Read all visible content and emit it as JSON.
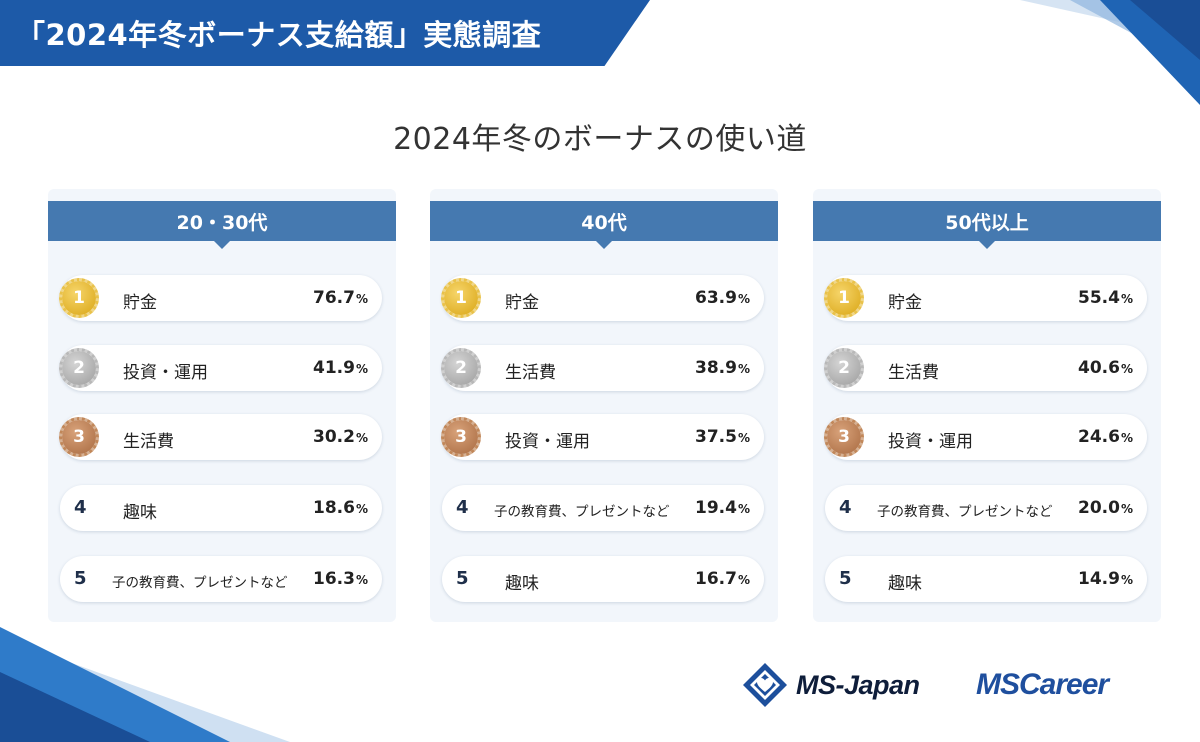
{
  "header": {
    "title": "「2024年冬ボーナス支給額」実態調査",
    "subtitle": "2024年冬のボーナスの使い道"
  },
  "colors": {
    "banner": "#1d5aa8",
    "panel_header": "#4579b0",
    "panel_bg": "#f2f6fb",
    "gold": "#e9c24a",
    "silver": "#b8b8b8",
    "bronze": "#c18759"
  },
  "panels": [
    {
      "title": "20・30代",
      "items": [
        {
          "rank": "1",
          "label": "貯金",
          "value": "76.7",
          "unit": "%"
        },
        {
          "rank": "2",
          "label": "投資・運用",
          "value": "41.9",
          "unit": "%"
        },
        {
          "rank": "3",
          "label": "生活費",
          "value": "30.2",
          "unit": "%"
        },
        {
          "rank": "4",
          "label": "趣味",
          "value": "18.6",
          "unit": "%"
        },
        {
          "rank": "5",
          "label": "子の教育費、プレゼントなど",
          "value": "16.3",
          "unit": "%"
        }
      ]
    },
    {
      "title": "40代",
      "items": [
        {
          "rank": "1",
          "label": "貯金",
          "value": "63.9",
          "unit": "%"
        },
        {
          "rank": "2",
          "label": "生活費",
          "value": "38.9",
          "unit": "%"
        },
        {
          "rank": "3",
          "label": "投資・運用",
          "value": "37.5",
          "unit": "%"
        },
        {
          "rank": "4",
          "label": "子の教育費、プレゼントなど",
          "value": "19.4",
          "unit": "%"
        },
        {
          "rank": "5",
          "label": "趣味",
          "value": "16.7",
          "unit": "%"
        }
      ]
    },
    {
      "title": "50代以上",
      "items": [
        {
          "rank": "1",
          "label": "貯金",
          "value": "55.4",
          "unit": "%"
        },
        {
          "rank": "2",
          "label": "生活費",
          "value": "40.6",
          "unit": "%"
        },
        {
          "rank": "3",
          "label": "投資・運用",
          "value": "24.6",
          "unit": "%"
        },
        {
          "rank": "4",
          "label": "子の教育費、プレゼントなど",
          "value": "20.0",
          "unit": "%"
        },
        {
          "rank": "5",
          "label": "趣味",
          "value": "14.9",
          "unit": "%"
        }
      ]
    }
  ],
  "logos": {
    "ms_japan": "MS-Japan",
    "ms_career": "MSCareer",
    "ms_japan_icon": "diamond-heart-logo-icon"
  }
}
